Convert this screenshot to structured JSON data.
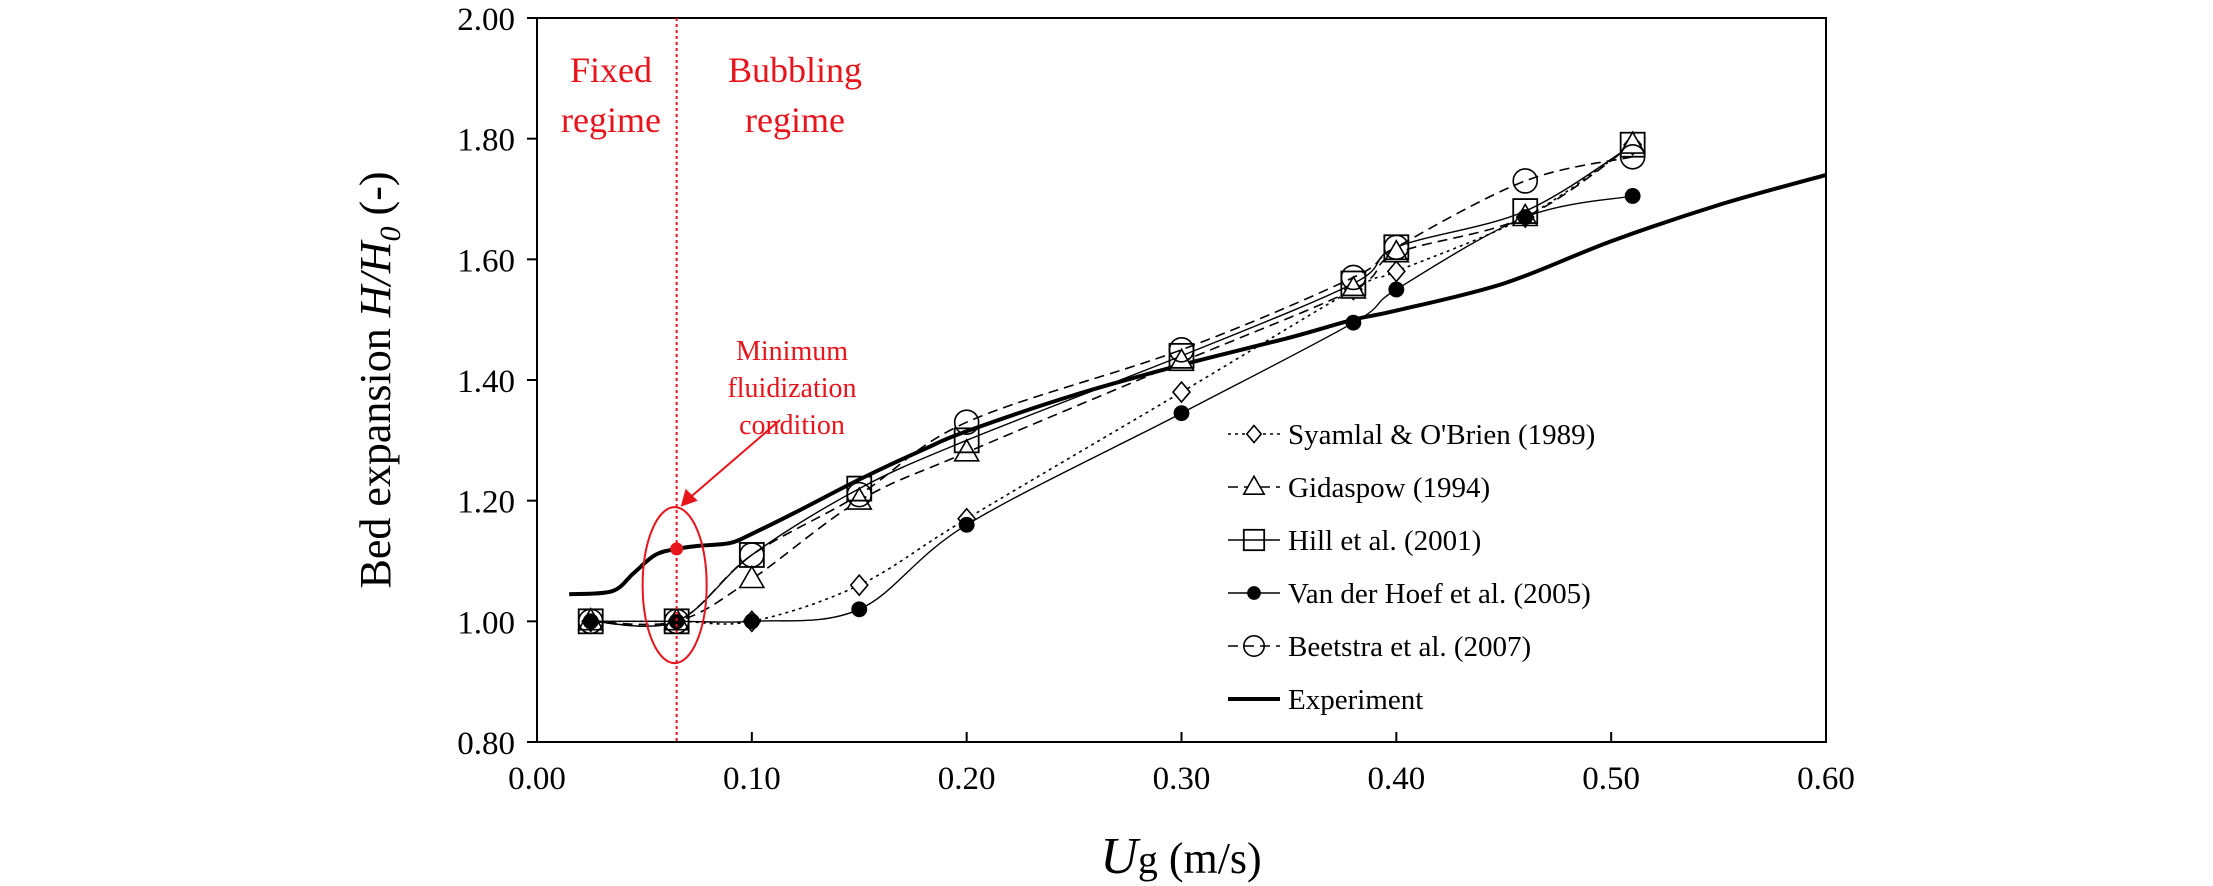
{
  "chart_data": {
    "type": "line",
    "xlabel": {
      "italic": "U",
      "subscript": "g",
      "rest": " (m/s)"
    },
    "ylabel": {
      "prefix": "Bed expansion ",
      "italic": "H/H",
      "subscript": "0",
      "suffix": " (-)"
    },
    "xlim": [
      0,
      0.6
    ],
    "ylim": [
      0.8,
      2.0
    ],
    "x_ticks": [
      "0.00",
      "0.10",
      "0.20",
      "0.30",
      "0.40",
      "0.50",
      "0.60"
    ],
    "y_ticks": [
      "0.80",
      "1.00",
      "1.20",
      "1.40",
      "1.60",
      "1.80",
      "2.00"
    ],
    "grid": false,
    "legend_position": "bottom-right",
    "series": [
      {
        "name": "Syamlal & O'Brien (1989)",
        "marker": "diamond",
        "dash": "dotted",
        "x": [
          0.025,
          0.065,
          0.1,
          0.15,
          0.2,
          0.3,
          0.38,
          0.4,
          0.46,
          0.51
        ],
        "y": [
          1.0,
          1.0,
          1.0,
          1.06,
          1.17,
          1.38,
          1.55,
          1.58,
          1.67,
          1.79
        ]
      },
      {
        "name": "Gidaspow (1994)",
        "marker": "triangle",
        "dash": "dashed",
        "x": [
          0.025,
          0.065,
          0.1,
          0.15,
          0.2,
          0.3,
          0.38,
          0.4,
          0.46,
          0.51
        ],
        "y": [
          1.0,
          1.0,
          1.07,
          1.2,
          1.28,
          1.43,
          1.55,
          1.61,
          1.67,
          1.79
        ]
      },
      {
        "name": "Hill et al. (2001)",
        "marker": "square",
        "dash": "solid",
        "x": [
          0.025,
          0.065,
          0.1,
          0.15,
          0.2,
          0.3,
          0.38,
          0.4,
          0.46,
          0.51
        ],
        "y": [
          1.0,
          1.0,
          1.11,
          1.22,
          1.3,
          1.44,
          1.56,
          1.62,
          1.68,
          1.79
        ]
      },
      {
        "name": "Van der Hoef et al. (2005)",
        "marker": "filled-circle",
        "dash": "solid",
        "x": [
          0.025,
          0.065,
          0.1,
          0.15,
          0.2,
          0.3,
          0.38,
          0.4,
          0.46,
          0.51
        ],
        "y": [
          1.0,
          1.0,
          1.0,
          1.02,
          1.16,
          1.345,
          1.495,
          1.55,
          1.67,
          1.705
        ]
      },
      {
        "name": "Beetstra et al. (2007)",
        "marker": "circle",
        "dash": "dashed",
        "x": [
          0.025,
          0.065,
          0.1,
          0.15,
          0.2,
          0.3,
          0.38,
          0.4,
          0.46,
          0.51
        ],
        "y": [
          1.0,
          1.0,
          1.11,
          1.21,
          1.33,
          1.45,
          1.57,
          1.62,
          1.73,
          1.77
        ]
      },
      {
        "name": "Experiment",
        "marker": "none",
        "dash": "solid-bold",
        "x": [
          0.015,
          0.035,
          0.045,
          0.055,
          0.065,
          0.075,
          0.09,
          0.1,
          0.12,
          0.15,
          0.18,
          0.2,
          0.25,
          0.3,
          0.35,
          0.38,
          0.4,
          0.45,
          0.5,
          0.55,
          0.6
        ],
        "y": [
          1.045,
          1.05,
          1.08,
          1.11,
          1.12,
          1.125,
          1.13,
          1.145,
          1.18,
          1.235,
          1.285,
          1.315,
          1.375,
          1.425,
          1.47,
          1.5,
          1.515,
          1.56,
          1.63,
          1.69,
          1.74
        ]
      }
    ],
    "annotations": {
      "fixed_regime": [
        "Fixed",
        "regime"
      ],
      "bubbling_regime": [
        "Bubbling",
        "regime"
      ],
      "min_fluidization": [
        "Minimum",
        "fluidization",
        "condition"
      ],
      "min_fluidization_x": 0.065,
      "min_fluidization_point": {
        "x": 0.065,
        "y": 1.12
      }
    },
    "colors": {
      "annotation": "#e8141b",
      "axis": "#000000"
    }
  }
}
